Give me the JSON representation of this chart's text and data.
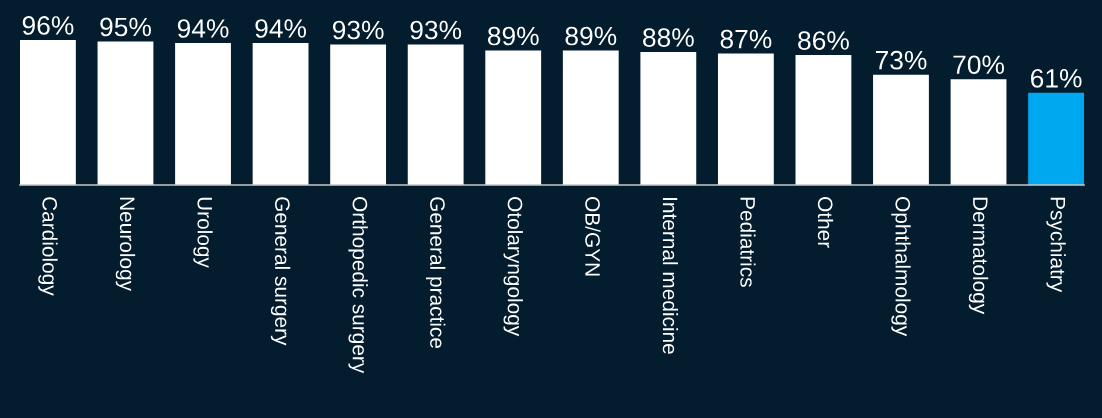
{
  "chart_data": {
    "type": "bar",
    "categories": [
      "Cardiology",
      "Neurology",
      "Urology",
      "General surgery",
      "Orthopedic surgery",
      "General practice",
      "Otolaryngology",
      "OB/GYN",
      "Internal medicine",
      "Pediatrics",
      "Other",
      "Ophthalmology",
      "Dermatology",
      "Psychiatry"
    ],
    "values": [
      96,
      95,
      94,
      94,
      93,
      93,
      89,
      89,
      88,
      87,
      86,
      73,
      70,
      61
    ],
    "colors": [
      "#ffffff",
      "#ffffff",
      "#ffffff",
      "#ffffff",
      "#ffffff",
      "#ffffff",
      "#ffffff",
      "#ffffff",
      "#ffffff",
      "#ffffff",
      "#ffffff",
      "#ffffff",
      "#ffffff",
      "#00a8f0"
    ],
    "value_labels": [
      "96%",
      "95%",
      "94%",
      "94%",
      "93%",
      "93%",
      "89%",
      "89%",
      "88%",
      "87%",
      "86%",
      "73%",
      "70%",
      "61%"
    ]
  }
}
